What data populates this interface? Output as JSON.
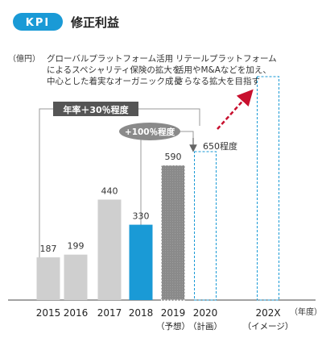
{
  "header": {
    "badge": "KPI",
    "title": "修正利益"
  },
  "colors": {
    "kpi_blue": "#1a9ad6",
    "gray_light": "#cfcfcf",
    "gray_dark": "#8a8a8a",
    "highlight_blue": "#1a9ad6",
    "red_arrow": "#c8102e"
  },
  "annotations": {
    "growth_rate": "年率＋30％程度",
    "growth_double": "+100％程度",
    "target_2020": "650程度",
    "note_left": [
      "グローバルプラットフォーム活用",
      "によるスペシャリティ保険の拡大を",
      "中心とした着実なオーガニック成長"
    ],
    "note_right": [
      "リテールプラットフォーム",
      "活用やM&Aなどを加え、",
      "さらなる拡大を目指す"
    ]
  },
  "chart_data": {
    "type": "bar",
    "title": "",
    "ylabel": "（億円）",
    "xlabel": "（年度）",
    "ylim": [
      0,
      720
    ],
    "categories": [
      "2015",
      "2016",
      "2017",
      "2018",
      "2019",
      "2020",
      "202X"
    ],
    "category_sublabels": [
      "",
      "",
      "",
      "",
      "（予想）",
      "（計画）",
      "（イメージ）"
    ],
    "values": [
      187,
      199,
      440,
      330,
      590,
      650,
      null
    ],
    "value_labels": [
      "187",
      "199",
      "440",
      "330",
      "590",
      "",
      ""
    ],
    "styles": [
      "actual",
      "actual",
      "actual",
      "highlight",
      "forecast",
      "plan",
      "image"
    ]
  }
}
